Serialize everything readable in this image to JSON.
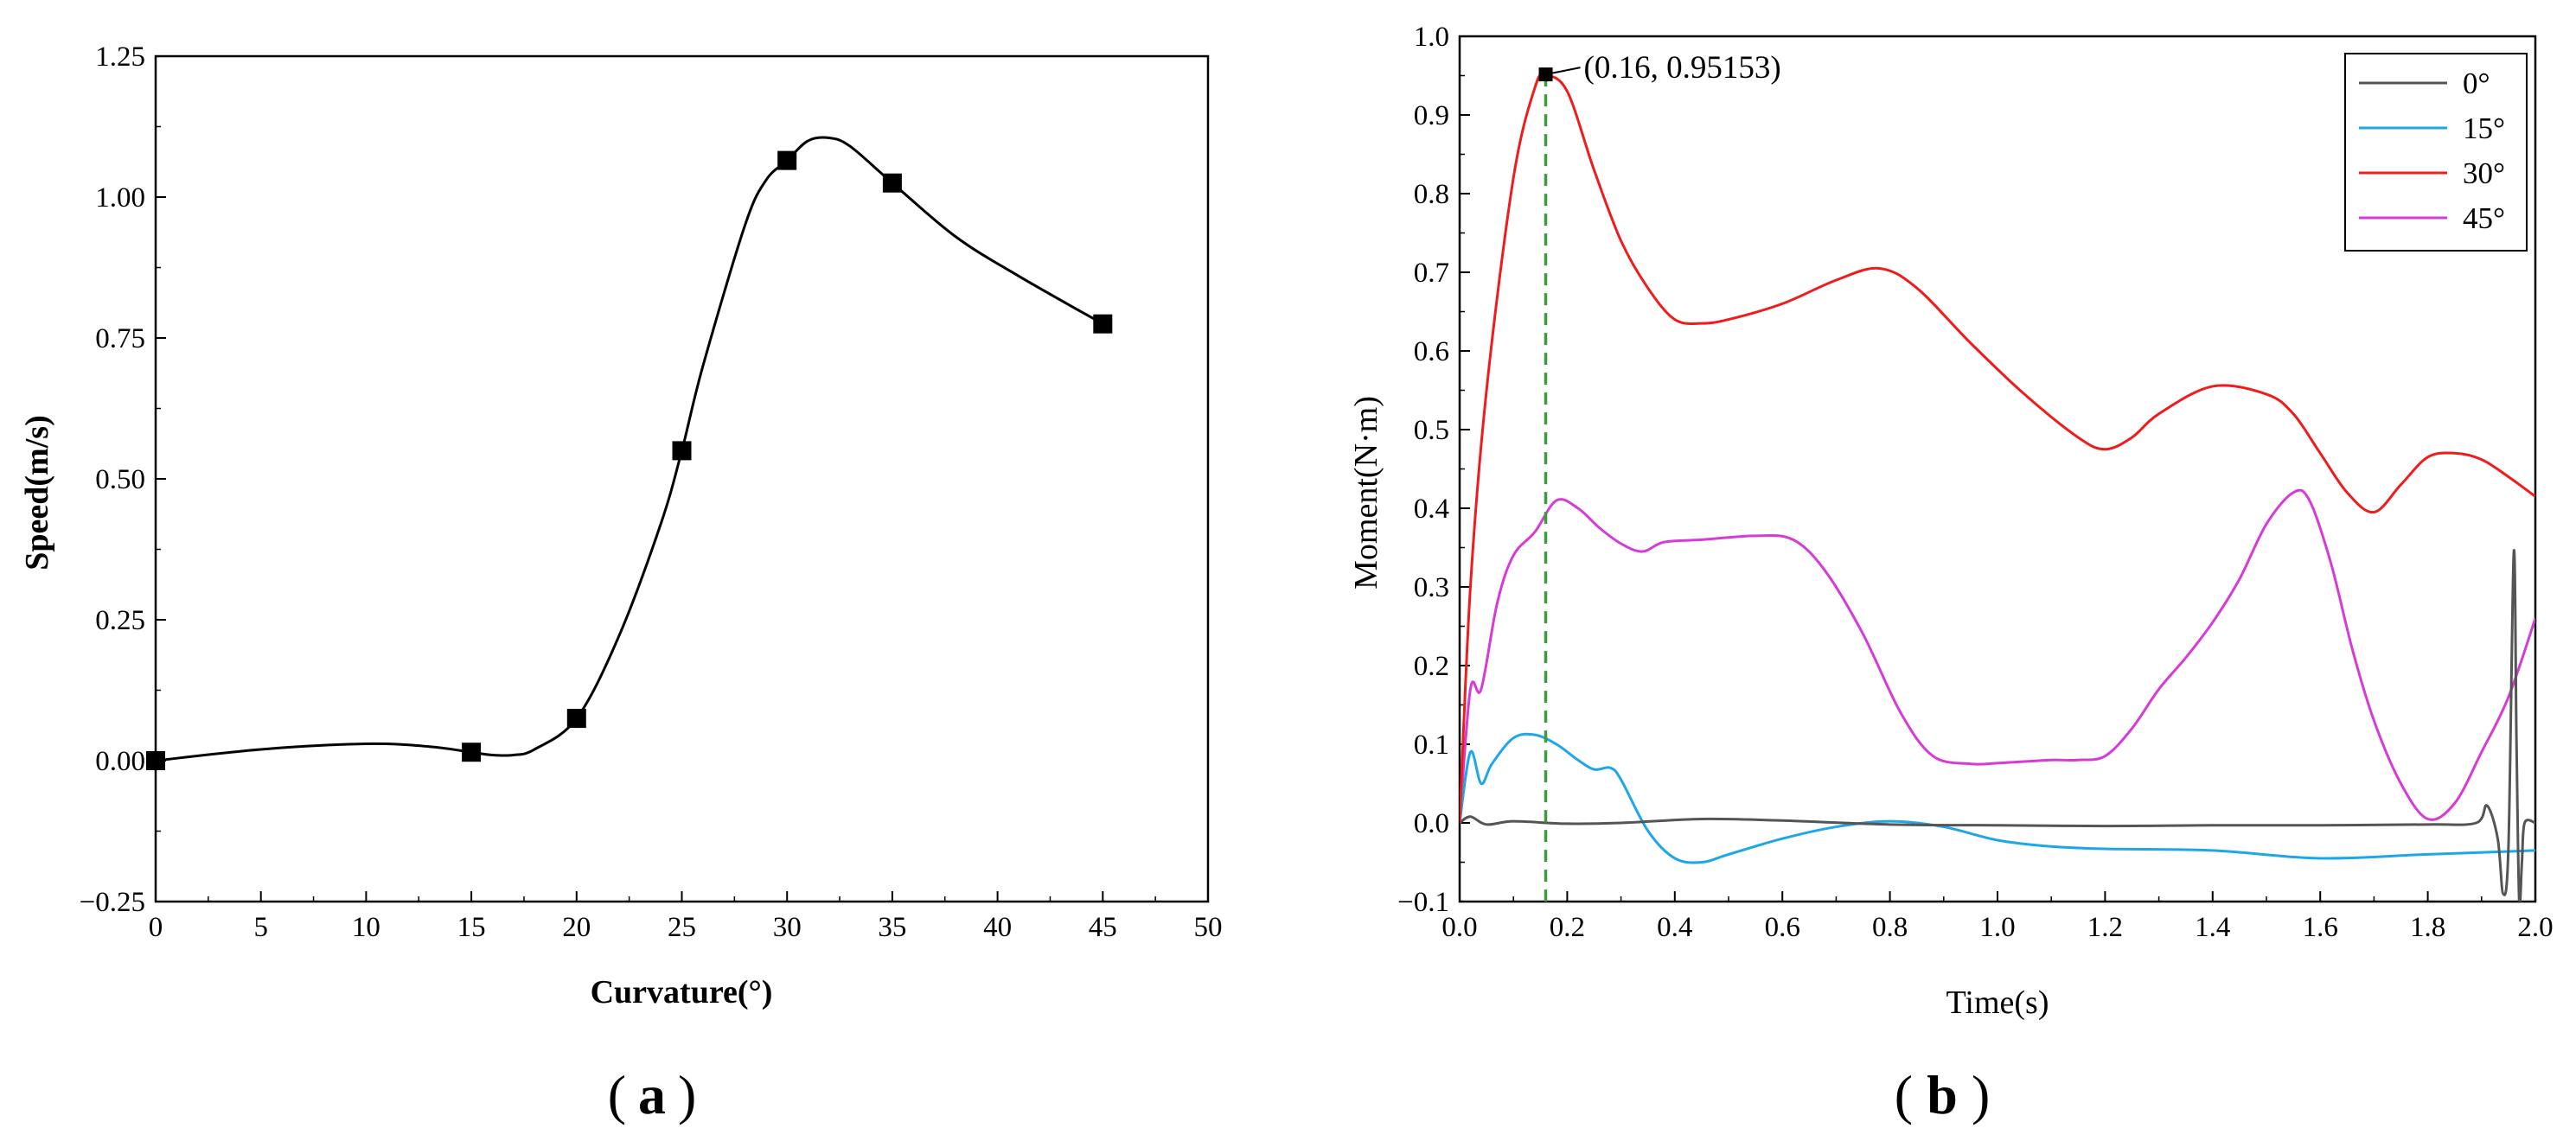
{
  "chart_data": [
    {
      "type": "line",
      "panel": "a",
      "caption_label": "a",
      "xlabel": "Curvature(°)",
      "ylabel": "Speed(m/s)",
      "xlim": [
        0,
        50
      ],
      "ylim": [
        -0.25,
        1.25
      ],
      "xticks": [
        0,
        5,
        10,
        15,
        20,
        25,
        30,
        35,
        40,
        45,
        50
      ],
      "xtick_labels": [
        "0",
        "5",
        "10",
        "15",
        "20",
        "25",
        "30",
        "35",
        "40",
        "45",
        "50"
      ],
      "yticks": [
        -0.25,
        0,
        0.25,
        0.5,
        0.75,
        1.0,
        1.25
      ],
      "ytick_labels": [
        "−0.25",
        "0.00",
        "0.25",
        "0.50",
        "0.75",
        "1.00",
        "1.25"
      ],
      "series": [
        {
          "name": "Speed",
          "color": "#000000",
          "marker": "square",
          "x": [
            0,
            15,
            20,
            25,
            30,
            35,
            45
          ],
          "y": [
            0.0,
            0.015,
            0.075,
            0.55,
            1.065,
            1.025,
            0.775
          ]
        }
      ],
      "curve": {
        "x": [
          0,
          5,
          10,
          13,
          15,
          16,
          17,
          18,
          20,
          22,
          24,
          25,
          26,
          28,
          29,
          30,
          31,
          32,
          33,
          35,
          38,
          41,
          45
        ],
        "y": [
          0.0,
          0.02,
          0.03,
          0.025,
          0.015,
          0.01,
          0.01,
          0.02,
          0.075,
          0.22,
          0.42,
          0.55,
          0.7,
          0.95,
          1.03,
          1.065,
          1.1,
          1.105,
          1.09,
          1.025,
          0.93,
          0.86,
          0.775
        ]
      }
    },
    {
      "type": "line",
      "panel": "b",
      "caption_label": "b",
      "xlabel": "Time(s)",
      "ylabel": "Moment(N·m)",
      "xlim": [
        0.0,
        2.0
      ],
      "ylim": [
        -0.1,
        1.0
      ],
      "xticks": [
        0.0,
        0.2,
        0.4,
        0.6,
        0.8,
        1.0,
        1.2,
        1.4,
        1.6,
        1.8,
        2.0
      ],
      "xtick_labels": [
        "0.0",
        "0.2",
        "0.4",
        "0.6",
        "0.8",
        "1.0",
        "1.2",
        "1.4",
        "1.6",
        "1.8",
        "2.0"
      ],
      "yticks": [
        -0.1,
        0.0,
        0.1,
        0.2,
        0.3,
        0.4,
        0.5,
        0.6,
        0.7,
        0.8,
        0.9,
        1.0
      ],
      "ytick_labels": [
        "−0.1",
        "0.0",
        "0.1",
        "0.2",
        "0.3",
        "0.4",
        "0.5",
        "0.6",
        "0.7",
        "0.8",
        "0.9",
        "1.0"
      ],
      "legend_position": "top-right",
      "series": [
        {
          "name": "0°",
          "color": "#555555",
          "x": [
            0,
            0.02,
            0.05,
            0.1,
            0.2,
            0.3,
            0.45,
            0.6,
            0.8,
            1.0,
            1.2,
            1.4,
            1.6,
            1.8,
            1.89,
            1.91,
            1.93,
            1.94,
            1.95,
            1.96,
            1.965,
            1.97,
            1.975,
            1.98,
            2.0
          ],
          "y": [
            0,
            0.008,
            -0.002,
            0.002,
            -0.001,
            0.0,
            0.005,
            0.003,
            -0.002,
            -0.003,
            -0.004,
            -0.003,
            -0.003,
            -0.002,
            0.0,
            0.022,
            -0.02,
            -0.09,
            -0.03,
            0.345,
            0.1,
            -0.1,
            -0.05,
            0.0,
            0.0
          ]
        },
        {
          "name": "15°",
          "color": "#1ea7e8",
          "x": [
            0,
            0.02,
            0.04,
            0.06,
            0.1,
            0.14,
            0.18,
            0.22,
            0.25,
            0.28,
            0.3,
            0.35,
            0.4,
            0.45,
            0.5,
            0.6,
            0.7,
            0.8,
            0.9,
            1.0,
            1.1,
            1.2,
            1.4,
            1.6,
            1.8,
            2.0
          ],
          "y": [
            0,
            0.09,
            0.05,
            0.075,
            0.108,
            0.112,
            0.1,
            0.08,
            0.068,
            0.07,
            0.055,
            -0.01,
            -0.045,
            -0.05,
            -0.04,
            -0.02,
            -0.005,
            0.002,
            -0.005,
            -0.022,
            -0.03,
            -0.033,
            -0.035,
            -0.045,
            -0.04,
            -0.035
          ]
        },
        {
          "name": "30°",
          "color": "#ee1c1c",
          "x": [
            0,
            0.02,
            0.05,
            0.1,
            0.14,
            0.16,
            0.2,
            0.25,
            0.3,
            0.35,
            0.4,
            0.45,
            0.5,
            0.6,
            0.7,
            0.78,
            0.85,
            0.95,
            1.05,
            1.15,
            1.2,
            1.25,
            1.3,
            1.4,
            1.5,
            1.55,
            1.6,
            1.65,
            1.7,
            1.75,
            1.8,
            1.85,
            1.9,
            1.95,
            2.0
          ],
          "y": [
            0,
            0.3,
            0.55,
            0.82,
            0.935,
            0.95,
            0.93,
            0.83,
            0.74,
            0.68,
            0.64,
            0.635,
            0.64,
            0.66,
            0.69,
            0.705,
            0.68,
            0.61,
            0.545,
            0.49,
            0.475,
            0.49,
            0.52,
            0.555,
            0.545,
            0.52,
            0.47,
            0.42,
            0.395,
            0.43,
            0.465,
            0.47,
            0.462,
            0.44,
            0.415
          ]
        },
        {
          "name": "45°",
          "color": "#d63bd6",
          "x": [
            0,
            0.02,
            0.04,
            0.07,
            0.1,
            0.14,
            0.18,
            0.22,
            0.26,
            0.3,
            0.34,
            0.38,
            0.45,
            0.55,
            0.62,
            0.68,
            0.75,
            0.82,
            0.88,
            0.95,
            1.0,
            1.05,
            1.1,
            1.15,
            1.2,
            1.25,
            1.3,
            1.35,
            1.4,
            1.45,
            1.5,
            1.55,
            1.58,
            1.62,
            1.66,
            1.7,
            1.75,
            1.8,
            1.85,
            1.9,
            1.95,
            2.0
          ],
          "y": [
            0,
            0.17,
            0.17,
            0.28,
            0.34,
            0.37,
            0.41,
            0.4,
            0.375,
            0.355,
            0.345,
            0.357,
            0.36,
            0.365,
            0.36,
            0.32,
            0.24,
            0.14,
            0.085,
            0.075,
            0.076,
            0.078,
            0.08,
            0.08,
            0.085,
            0.12,
            0.17,
            0.21,
            0.255,
            0.31,
            0.38,
            0.42,
            0.41,
            0.33,
            0.22,
            0.13,
            0.05,
            0.005,
            0.025,
            0.09,
            0.16,
            0.26
          ]
        }
      ],
      "annotation": {
        "label": "(0.16, 0.95153)",
        "x": 0.16,
        "y": 0.95153,
        "guide_color": "#3c9c3c"
      }
    }
  ]
}
